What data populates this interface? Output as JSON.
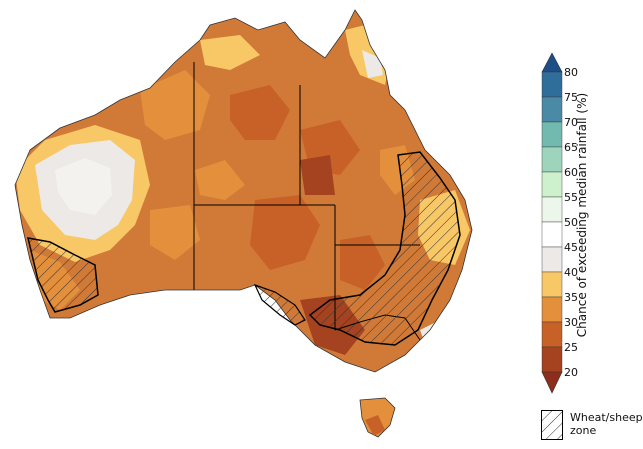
{
  "colorbar": {
    "title": "Chance of exceeding median rainfall (%)",
    "ticks": [
      "80",
      "75",
      "70",
      "65",
      "60",
      "55",
      "50",
      "45",
      "40",
      "35",
      "30",
      "25",
      "20"
    ],
    "colors": {
      "75-80": "#2f6e9a",
      "70-75": "#4a8aa6",
      "65-70": "#72b9b0",
      "60-65": "#9ed4bc",
      "55-60": "#cdf1cc",
      "50-55": "#edf6ea",
      "45-50": "#ffffff",
      "40-45": "#ece9e6",
      "35-40": "#f8c766",
      "30-35": "#e38f3c",
      "25-30": "#c86128",
      "20-25": "#a54321",
      "above-80": "#1d4f86",
      "below-20": "#8c2e1b"
    }
  },
  "legend": {
    "hatch_label_line1": "Wheat/sheep",
    "hatch_label_line2": "zone"
  },
  "map": {
    "regions": [
      "Western Australia",
      "Northern Territory",
      "South Australia",
      "Queensland",
      "New South Wales",
      "Victoria",
      "Tasmania"
    ],
    "land_color": "#d17a37",
    "outline_color": "#000000"
  }
}
